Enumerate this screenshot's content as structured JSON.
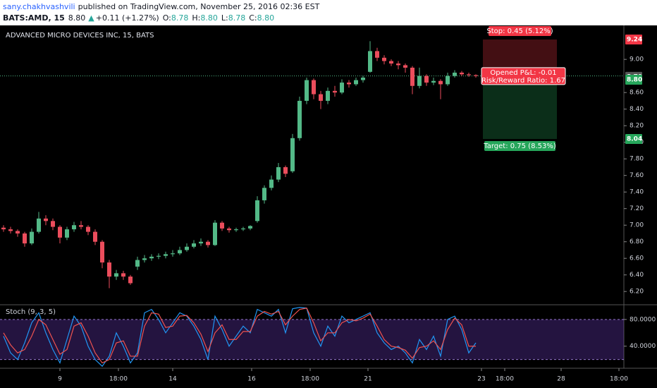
{
  "header": {
    "author": "sany.chakhvashvili",
    "published": "published on TradingView.com, November 25, 2016 02:36 EST",
    "symbol": "BATS:AMD, 15",
    "last": "8.80",
    "change": "+0.11 (+1.27%)",
    "fields": [
      {
        "label": "O:",
        "value": "8.78"
      },
      {
        "label": "H:",
        "value": "8.80"
      },
      {
        "label": "L:",
        "value": "8.78"
      },
      {
        "label": "C:",
        "value": "8.80"
      }
    ]
  },
  "chart_data": {
    "type": "candlestick",
    "title": "ADVANCED MICRO DEVICES INC, 15, BATS",
    "up_color": "#53b987",
    "down_color": "#eb4d5c",
    "ohlc": [
      [
        6.97,
        7.0,
        6.92,
        6.95
      ],
      [
        6.95,
        6.98,
        6.9,
        6.93
      ],
      [
        6.93,
        6.95,
        6.86,
        6.9
      ],
      [
        6.9,
        6.92,
        6.74,
        6.78
      ],
      [
        6.78,
        6.96,
        6.76,
        6.92
      ],
      [
        6.92,
        7.16,
        6.9,
        7.08
      ],
      [
        7.08,
        7.12,
        7.0,
        7.05
      ],
      [
        7.05,
        7.08,
        6.94,
        6.98
      ],
      [
        6.98,
        7.0,
        6.78,
        6.85
      ],
      [
        6.85,
        6.98,
        6.82,
        6.95
      ],
      [
        6.95,
        7.04,
        6.92,
        7.0
      ],
      [
        7.0,
        7.05,
        6.95,
        6.98
      ],
      [
        6.98,
        7.0,
        6.88,
        6.92
      ],
      [
        6.92,
        6.95,
        6.76,
        6.8
      ],
      [
        6.8,
        6.82,
        6.48,
        6.55
      ],
      [
        6.55,
        6.58,
        6.24,
        6.38
      ],
      [
        6.38,
        6.46,
        6.34,
        6.42
      ],
      [
        6.42,
        6.45,
        6.34,
        6.38
      ],
      [
        6.38,
        6.4,
        6.28,
        6.3
      ],
      [
        6.5,
        6.62,
        6.46,
        6.58
      ],
      [
        6.58,
        6.64,
        6.55,
        6.6
      ],
      [
        6.6,
        6.65,
        6.57,
        6.62
      ],
      [
        6.62,
        6.66,
        6.59,
        6.63
      ],
      [
        6.63,
        6.68,
        6.6,
        6.65
      ],
      [
        6.65,
        6.7,
        6.62,
        6.66
      ],
      [
        6.66,
        6.74,
        6.64,
        6.7
      ],
      [
        6.7,
        6.78,
        6.68,
        6.74
      ],
      [
        6.74,
        6.82,
        6.72,
        6.78
      ],
      [
        6.78,
        6.84,
        6.75,
        6.8
      ],
      [
        6.8,
        6.82,
        6.73,
        6.76
      ],
      [
        6.76,
        7.06,
        6.75,
        7.03
      ],
      [
        7.03,
        7.05,
        6.93,
        6.96
      ],
      [
        6.96,
        6.98,
        6.91,
        6.94
      ],
      [
        6.94,
        6.97,
        6.92,
        6.95
      ],
      [
        6.95,
        6.98,
        6.93,
        6.96
      ],
      [
        6.96,
        7.0,
        6.94,
        6.99
      ],
      [
        7.05,
        7.35,
        7.03,
        7.3
      ],
      [
        7.3,
        7.48,
        7.26,
        7.45
      ],
      [
        7.45,
        7.6,
        7.42,
        7.55
      ],
      [
        7.55,
        7.75,
        7.52,
        7.7
      ],
      [
        7.7,
        7.72,
        7.58,
        7.62
      ],
      [
        7.65,
        8.1,
        7.63,
        8.05
      ],
      [
        8.05,
        8.55,
        8.02,
        8.5
      ],
      [
        8.5,
        8.78,
        8.46,
        8.75
      ],
      [
        8.75,
        8.77,
        8.52,
        8.58
      ],
      [
        8.58,
        8.62,
        8.4,
        8.5
      ],
      [
        8.5,
        8.66,
        8.46,
        8.62
      ],
      [
        8.62,
        8.68,
        8.55,
        8.6
      ],
      [
        8.6,
        8.76,
        8.58,
        8.72
      ],
      [
        8.72,
        8.75,
        8.66,
        8.7
      ],
      [
        8.7,
        8.78,
        8.68,
        8.75
      ],
      [
        8.75,
        8.8,
        8.72,
        8.78
      ],
      [
        8.85,
        9.22,
        8.84,
        9.1
      ],
      [
        9.1,
        9.14,
        8.98,
        9.02
      ],
      [
        9.02,
        9.05,
        8.94,
        8.98
      ],
      [
        8.98,
        9.0,
        8.92,
        8.95
      ],
      [
        8.95,
        8.98,
        8.88,
        8.93
      ],
      [
        8.93,
        8.95,
        8.84,
        8.9
      ],
      [
        8.9,
        8.92,
        8.58,
        8.68
      ],
      [
        8.68,
        8.9,
        8.65,
        8.8
      ],
      [
        8.8,
        8.82,
        8.68,
        8.72
      ],
      [
        8.72,
        8.78,
        8.69,
        8.74
      ],
      [
        8.74,
        8.76,
        8.52,
        8.7
      ],
      [
        8.7,
        8.84,
        8.68,
        8.8
      ],
      [
        8.8,
        8.87,
        8.78,
        8.84
      ],
      [
        8.84,
        8.86,
        8.8,
        8.82
      ],
      [
        8.82,
        8.84,
        8.79,
        8.81
      ],
      [
        8.81,
        8.82,
        8.78,
        8.8
      ]
    ],
    "xlim": [
      -0.5,
      88
    ],
    "xticks": [
      {
        "value": 8,
        "label": "9"
      },
      {
        "value": 16.3,
        "label": "18:00"
      },
      {
        "value": 24,
        "label": "14"
      },
      {
        "value": 35.2,
        "label": "16"
      },
      {
        "value": 43.5,
        "label": "18:00"
      },
      {
        "value": 51.7,
        "label": "21"
      },
      {
        "value": 67.8,
        "label": "23"
      },
      {
        "value": 71.1,
        "label": "18:00"
      },
      {
        "value": 79.1,
        "label": "28"
      },
      {
        "value": 87.3,
        "label": "18:00"
      }
    ],
    "ylim": [
      6.04,
      9.41
    ],
    "yticks": [
      {
        "value": 6.2,
        "label": "6.20"
      },
      {
        "value": 6.4,
        "label": "6.40"
      },
      {
        "value": 6.6,
        "label": "6.60"
      },
      {
        "value": 6.8,
        "label": "6.80"
      },
      {
        "value": 7.0,
        "label": "7.00"
      },
      {
        "value": 7.2,
        "label": "7.20"
      },
      {
        "value": 7.4,
        "label": "7.40"
      },
      {
        "value": 7.6,
        "label": "7.60"
      },
      {
        "value": 7.8,
        "label": "7.80"
      },
      {
        "value": 8.0,
        "label": "8.00"
      },
      {
        "value": 8.2,
        "label": "8.20"
      },
      {
        "value": 8.4,
        "label": "8.40"
      },
      {
        "value": 8.6,
        "label": "8.60"
      },
      {
        "value": 9.0,
        "label": "9.00"
      }
    ],
    "last_price": {
      "value": 8.8,
      "label": "8.80"
    },
    "position": {
      "entry": 8.79,
      "stop": 9.24,
      "target": 8.04,
      "stop_label": "Stop: 0.45 (5.12%)",
      "pnl_label": "Opened P&L: -0.01",
      "rr_label": "Risk/Reward Ratio: 1.67",
      "target_label": "Target: 0.75 (8.53%)"
    },
    "stoch": {
      "title": "Stoch (9, 3, 5)",
      "ylim": [
        7,
        102
      ],
      "yticks": [
        {
          "value": 80,
          "label": "80.0000"
        },
        {
          "value": 40,
          "label": "40.0000"
        }
      ],
      "bands": [
        20,
        80
      ],
      "series": [
        {
          "color": "#2196f3",
          "values": [
            55,
            30,
            20,
            45,
            75,
            90,
            60,
            35,
            15,
            50,
            85,
            70,
            40,
            20,
            10,
            25,
            60,
            40,
            15,
            30,
            90,
            95,
            80,
            60,
            75,
            90,
            85,
            70,
            50,
            20,
            85,
            65,
            40,
            55,
            70,
            60,
            95,
            90,
            85,
            95,
            60,
            96,
            98,
            97,
            60,
            40,
            70,
            55,
            85,
            75,
            80,
            85,
            90,
            60,
            45,
            35,
            40,
            30,
            15,
            50,
            35,
            55,
            25,
            80,
            85,
            65,
            30,
            45
          ]
        },
        {
          "color": "#ef5350",
          "values": [
            60,
            42,
            30,
            35,
            55,
            80,
            72,
            50,
            28,
            35,
            70,
            75,
            55,
            30,
            15,
            20,
            45,
            48,
            25,
            25,
            70,
            90,
            88,
            68,
            70,
            85,
            86,
            75,
            58,
            32,
            60,
            72,
            50,
            50,
            62,
            62,
            85,
            92,
            88,
            92,
            72,
            85,
            95,
            97,
            75,
            48,
            60,
            60,
            75,
            80,
            78,
            82,
            88,
            70,
            50,
            40,
            38,
            34,
            22,
            38,
            40,
            48,
            35,
            65,
            82,
            72,
            40,
            40
          ]
        }
      ]
    }
  }
}
